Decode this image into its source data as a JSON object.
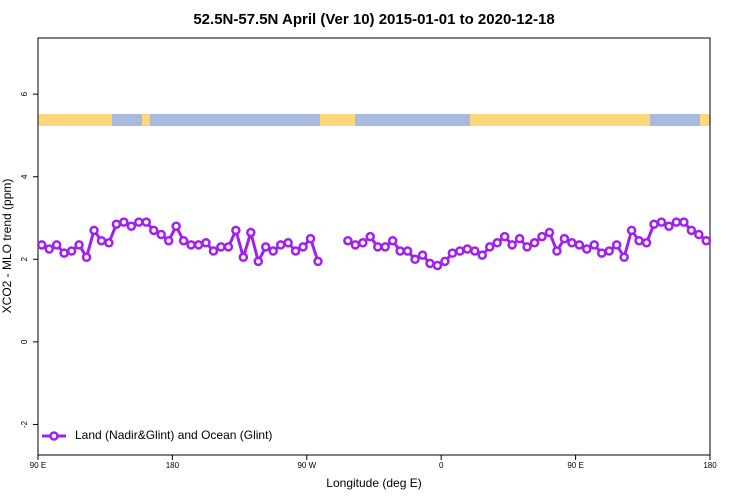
{
  "chart_data": {
    "type": "line",
    "title": "52.5N-57.5N April (Ver 10)   2015-01-01 to 2020-12-18",
    "x_label": "Longitude (deg E)",
    "y_label": "XCO2 - MLO trend (ppm)",
    "x": [
      92.5,
      97.5,
      102.5,
      107.5,
      112.5,
      117.5,
      122.5,
      127.5,
      132.5,
      137.5,
      142.5,
      147.5,
      152.5,
      157.5,
      162.5,
      167.5,
      172.5,
      177.5,
      182.5,
      187.5,
      192.5,
      197.5,
      202.5,
      207.5,
      212.5,
      217.5,
      222.5,
      227.5,
      232.5,
      237.5,
      242.5,
      247.5,
      252.5,
      257.5,
      262.5,
      267.5,
      272.5,
      277.5,
      282.5,
      287.5,
      292.5,
      297.5,
      302.5,
      307.5,
      312.5,
      317.5,
      322.5,
      327.5,
      332.5,
      337.5,
      342.5,
      347.5,
      352.5,
      357.5,
      362.5,
      367.5,
      372.5,
      377.5,
      382.5,
      387.5,
      392.5,
      397.5,
      402.5,
      407.5,
      412.5,
      417.5,
      422.5,
      427.5,
      432.5,
      437.5,
      442.5,
      447.5,
      452.5,
      457.5,
      462.5,
      467.5,
      472.5,
      477.5,
      482.5,
      487.5,
      492.5,
      497.5,
      502.5,
      507.5,
      512.5,
      517.5,
      522.5,
      527.5,
      532.5,
      537.5
    ],
    "series": [
      {
        "name": "Land (Nadir&Glint) and Ocean (Glint)",
        "color": "#a020f0",
        "values": [
          2.35,
          2.25,
          2.35,
          2.15,
          2.2,
          2.35,
          2.05,
          2.7,
          2.45,
          2.4,
          2.85,
          2.9,
          2.8,
          2.9,
          2.9,
          2.7,
          2.6,
          2.45,
          2.8,
          2.45,
          2.35,
          2.35,
          2.4,
          2.2,
          2.3,
          2.3,
          2.7,
          2.05,
          2.65,
          1.95,
          2.3,
          2.2,
          2.35,
          2.4,
          2.2,
          2.3,
          2.5,
          1.95,
          null,
          null,
          null,
          2.45,
          2.35,
          2.4,
          2.55,
          2.3,
          2.3,
          2.45,
          2.2,
          2.2,
          2.0,
          2.1,
          1.9,
          1.85,
          1.95,
          2.15,
          2.2,
          2.25,
          2.2,
          2.1,
          2.3,
          2.4,
          2.55,
          2.35,
          2.5,
          2.3,
          2.4,
          2.55,
          2.65,
          2.2,
          2.5,
          2.4,
          2.35,
          2.25,
          2.35,
          2.15,
          2.2,
          2.35,
          2.05,
          2.7,
          2.45,
          2.4,
          2.85,
          2.9,
          2.8,
          2.9,
          2.9,
          2.7,
          2.6,
          2.45
        ]
      }
    ],
    "xlim": [
      90,
      540
    ],
    "xticks": [
      {
        "value": 90,
        "label": "90 E"
      },
      180,
      {
        "value": 270,
        "label": "90 W"
      },
      {
        "value": 360,
        "label": "0"
      },
      {
        "value": 450,
        "label": "90 E"
      },
      180
    ],
    "ylim": [
      -2.74,
      7.36
    ],
    "yticks": [
      -2,
      0,
      2,
      4,
      6
    ],
    "legend": "bottom-left"
  }
}
